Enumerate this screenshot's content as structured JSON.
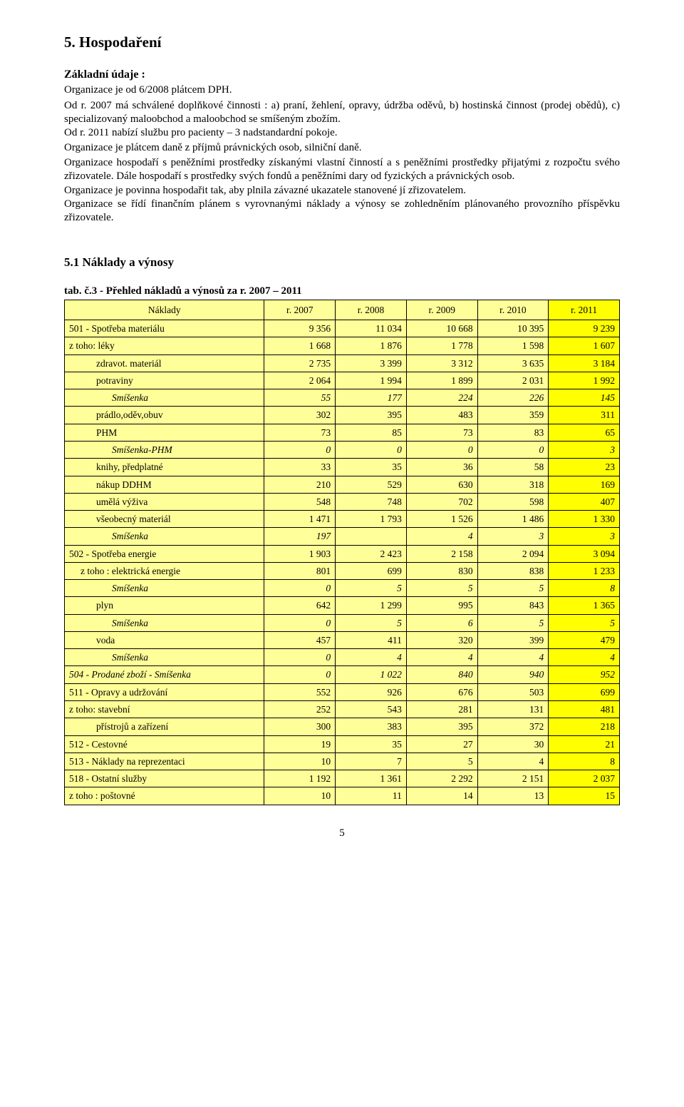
{
  "colors": {
    "header_bg": "#ffff99",
    "row_bg": "#ffff99",
    "last_col_bg": "#ffff00",
    "border": "#000000",
    "page_bg": "#ffffff",
    "text": "#000000"
  },
  "section": {
    "title": "5. Hospodaření",
    "subhead": "Základní údaje :",
    "p1": "Organizace je od  6/2008  plátcem DPH.",
    "p2": "Od r. 2007 má  schválené doplňkové činnosti : a) praní, žehlení, opravy, údržba oděvů, b) hostinská činnost (prodej obědů),  c) specializovaný maloobchod a maloobchod se smíšeným zbožím.",
    "p3": "Od r. 2011 nabízí službu pro pacienty – 3 nadstandardní pokoje.",
    "p4": "Organizace je plátcem daně z příjmů  právnických osob,  silniční daně.",
    "p5": "Organizace hospodaří s peněžními prostředky získanými vlastní činností a s peněžními prostředky přijatými z rozpočtu svého zřizovatele. Dále hospodaří s prostředky svých fondů a peněžními dary od fyzických a právnických osob.",
    "p6": "Organizace je povinna hospodařit tak, aby plnila závazné ukazatele stanovené jí  zřizovatelem.",
    "p7": "Organizace se řídí finančním plánem s vyrovnanými náklady a výnosy se zohledněním plánovaného provozního příspěvku zřizovatele."
  },
  "subsection": {
    "title": "5.1 Náklady a výnosy",
    "table_caption": "tab. č.3 - Přehled nákladů a výnosů za r. 2007 – 2011"
  },
  "table": {
    "col_widths": [
      "36%",
      "12.8%",
      "12.8%",
      "12.8%",
      "12.8%",
      "12.8%"
    ],
    "header": {
      "label": "Náklady",
      "years": [
        "r. 2007",
        "r. 2008",
        "r. 2009",
        "r. 2010",
        "r. 2011"
      ]
    },
    "rows": [
      {
        "label": "501 - Spotřeba materiálu",
        "indent": 0,
        "italic": false,
        "v": [
          "9 356",
          "11 034",
          "10 668",
          "10 395",
          "9 239"
        ]
      },
      {
        "label": "z toho: léky",
        "indent": 0,
        "italic": false,
        "v": [
          "1 668",
          "1 876",
          "1 778",
          "1 598",
          "1 607"
        ]
      },
      {
        "label": "zdravot. materiál",
        "indent": 2,
        "italic": false,
        "v": [
          "2 735",
          "3 399",
          "3 312",
          "3 635",
          "3 184"
        ]
      },
      {
        "label": "potraviny",
        "indent": 2,
        "italic": false,
        "v": [
          "2 064",
          "1 994",
          "1 899",
          "2 031",
          "1 992"
        ]
      },
      {
        "label": "Smíšenka",
        "indent": 3,
        "italic": true,
        "v": [
          "55",
          "177",
          "224",
          "226",
          "145"
        ]
      },
      {
        "label": "prádlo,oděv,obuv",
        "indent": 2,
        "italic": false,
        "v": [
          "302",
          "395",
          "483",
          "359",
          "311"
        ]
      },
      {
        "label": "PHM",
        "indent": 2,
        "italic": false,
        "v": [
          "73",
          "85",
          "73",
          "83",
          "65"
        ]
      },
      {
        "label": "Smíšenka-PHM",
        "indent": 3,
        "italic": true,
        "v": [
          "0",
          "0",
          "0",
          "0",
          "3"
        ]
      },
      {
        "label": "knihy, předplatné",
        "indent": 2,
        "italic": false,
        "v": [
          "33",
          "35",
          "36",
          "58",
          "23"
        ]
      },
      {
        "label": "nákup DDHM",
        "indent": 2,
        "italic": false,
        "v": [
          "210",
          "529",
          "630",
          "318",
          "169"
        ]
      },
      {
        "label": "umělá výživa",
        "indent": 2,
        "italic": false,
        "v": [
          "548",
          "748",
          "702",
          "598",
          "407"
        ]
      },
      {
        "label": "všeobecný materiál",
        "indent": 2,
        "italic": false,
        "v": [
          "1 471",
          "1 793",
          "1 526",
          "1 486",
          "1 330"
        ]
      },
      {
        "label": "Smíšenka",
        "indent": 3,
        "italic": true,
        "v": [
          "197",
          "",
          "4",
          "3",
          "3"
        ]
      },
      {
        "label": "502 - Spotřeba energie",
        "indent": 0,
        "italic": false,
        "v": [
          "1 903",
          "2 423",
          "2 158",
          "2 094",
          "3 094"
        ]
      },
      {
        "label": "z toho : elektrická energie",
        "indent": 1,
        "italic": false,
        "v": [
          "801",
          "699",
          "830",
          "838",
          "1 233"
        ]
      },
      {
        "label": "Smíšenka",
        "indent": 3,
        "italic": true,
        "v": [
          "0",
          "5",
          "5",
          "5",
          "8"
        ]
      },
      {
        "label": "plyn",
        "indent": 2,
        "italic": false,
        "v": [
          "642",
          "1 299",
          "995",
          "843",
          "1 365"
        ]
      },
      {
        "label": "Smíšenka",
        "indent": 3,
        "italic": true,
        "v": [
          "0",
          "5",
          "6",
          "5",
          "5"
        ]
      },
      {
        "label": "voda",
        "indent": 2,
        "italic": false,
        "v": [
          "457",
          "411",
          "320",
          "399",
          "479"
        ]
      },
      {
        "label": "Smíšenka",
        "indent": 3,
        "italic": true,
        "v": [
          "0",
          "4",
          "4",
          "4",
          "4"
        ]
      },
      {
        "label": "504 - Prodané zboží - Smíšenka",
        "indent": 0,
        "italic": true,
        "v": [
          "0",
          "1 022",
          "840",
          "940",
          "952"
        ]
      },
      {
        "label": "511 - Opravy a udržování",
        "indent": 0,
        "italic": false,
        "v": [
          "552",
          "926",
          "676",
          "503",
          "699"
        ]
      },
      {
        "label": "z toho:  stavební",
        "indent": 0,
        "italic": false,
        "v": [
          "252",
          "543",
          "281",
          "131",
          "481"
        ]
      },
      {
        "label": "přístrojů a zařízení",
        "indent": 2,
        "italic": false,
        "v": [
          "300",
          "383",
          "395",
          "372",
          "218"
        ]
      },
      {
        "label": "512 - Cestovné",
        "indent": 0,
        "italic": false,
        "v": [
          "19",
          "35",
          "27",
          "30",
          "21"
        ]
      },
      {
        "label": "513 - Náklady na reprezentaci",
        "indent": 0,
        "italic": false,
        "v": [
          "10",
          "7",
          "5",
          "4",
          "8"
        ]
      },
      {
        "label": "518 - Ostatní služby",
        "indent": 0,
        "italic": false,
        "v": [
          "1 192",
          "1 361",
          "2 292",
          "2 151",
          "2 037"
        ]
      },
      {
        "label": "z toho : poštovné",
        "indent": 0,
        "italic": false,
        "v": [
          "10",
          "11",
          "14",
          "13",
          "15"
        ]
      }
    ]
  },
  "page_number": "5"
}
